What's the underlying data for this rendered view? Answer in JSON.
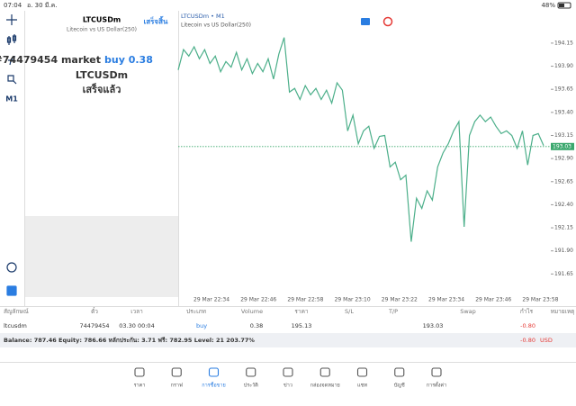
{
  "status": {
    "time": "07:04",
    "date": "อ. 30 มี.ค.",
    "battery": "48%"
  },
  "sidebar": {
    "timeframe": "M1"
  },
  "order_panel": {
    "symbol": "LTCUSDm",
    "description": "Litecoin vs US Dollar(250)",
    "done_button": "เสร็จสิ้น",
    "order_prefix": "#74479454 market",
    "order_side": "buy 0.38",
    "order_symbol": "LTCUSDm",
    "result": "เสร็จแล้ว"
  },
  "chart": {
    "type": "line",
    "symbol": "LTCUSDm • M1",
    "description": "Litecoin vs US Dollar(250)",
    "color": "#4caf8a",
    "ylim": [
      191.4,
      194.5
    ],
    "yticks": [
      {
        "value": 194.15,
        "label": "194.15"
      },
      {
        "value": 193.9,
        "label": "193.90"
      },
      {
        "value": 193.65,
        "label": "193.65"
      },
      {
        "value": 193.4,
        "label": "193.40"
      },
      {
        "value": 193.15,
        "label": "193.15"
      },
      {
        "value": 192.9,
        "label": "192.90"
      },
      {
        "value": 192.65,
        "label": "192.65"
      },
      {
        "value": 192.4,
        "label": "192.40"
      },
      {
        "value": 192.15,
        "label": "192.15"
      },
      {
        "value": 191.9,
        "label": "191.90"
      },
      {
        "value": 191.65,
        "label": "191.65"
      }
    ],
    "x_tick_labels": [
      "29 Mar 22:34",
      "29 Mar 22:46",
      "29 Mar 22:58",
      "29 Mar 23:10",
      "29 Mar 23:22",
      "29 Mar 23:34",
      "29 Mar 23:46",
      "29 Mar 23:58"
    ],
    "current_price": 193.03,
    "values": [
      193.86,
      194.08,
      194.01,
      194.11,
      193.98,
      194.08,
      193.93,
      194.01,
      193.84,
      193.95,
      193.89,
      194.05,
      193.86,
      193.98,
      193.82,
      193.93,
      193.84,
      193.98,
      193.76,
      194.03,
      194.21,
      193.62,
      193.66,
      193.54,
      193.69,
      193.59,
      193.66,
      193.54,
      193.64,
      193.5,
      193.72,
      193.64,
      193.2,
      193.37,
      193.06,
      193.2,
      193.25,
      193.01,
      193.14,
      193.15,
      192.81,
      192.86,
      192.67,
      192.72,
      192,
      192.47,
      192.36,
      192.55,
      192.45,
      192.81,
      192.96,
      193.06,
      193.2,
      193.3,
      192.16,
      193.15,
      193.3,
      193.37,
      193.3,
      193.35,
      193.25,
      193.17,
      193.2,
      193.15,
      193.01,
      193.2,
      192.83,
      193.15,
      193.17,
      193.04
    ]
  },
  "table": {
    "headers": [
      "สัญลักษณ์",
      "ตั๋ว",
      "เวลา",
      "ประเภท",
      "Volume",
      "ราคา",
      "S/L",
      "T/P",
      "Swap",
      "กำไร",
      "หมายเหตุ"
    ],
    "rows": [
      {
        "symbol": "ltcusdm",
        "ticket": "74479454",
        "time": "03.30 00:04",
        "type": "buy",
        "volume": "0.38",
        "price": "195.13",
        "current": "193.03",
        "profit": "-0.80"
      }
    ],
    "balance": "Balance: 787.46 Equity: 786.66 หลักประกัน: 3.71 ฟรี: 782.95 Level: 21 203.77%",
    "total": "-0.80",
    "currency": "USD"
  },
  "nav": [
    "ราคา",
    "กราฟ",
    "การซื้อขาย",
    "ประวัติ",
    "ข่าว",
    "กล่องจดหมาย",
    "แชท",
    "บัญชี",
    "การตั้งค่า"
  ]
}
